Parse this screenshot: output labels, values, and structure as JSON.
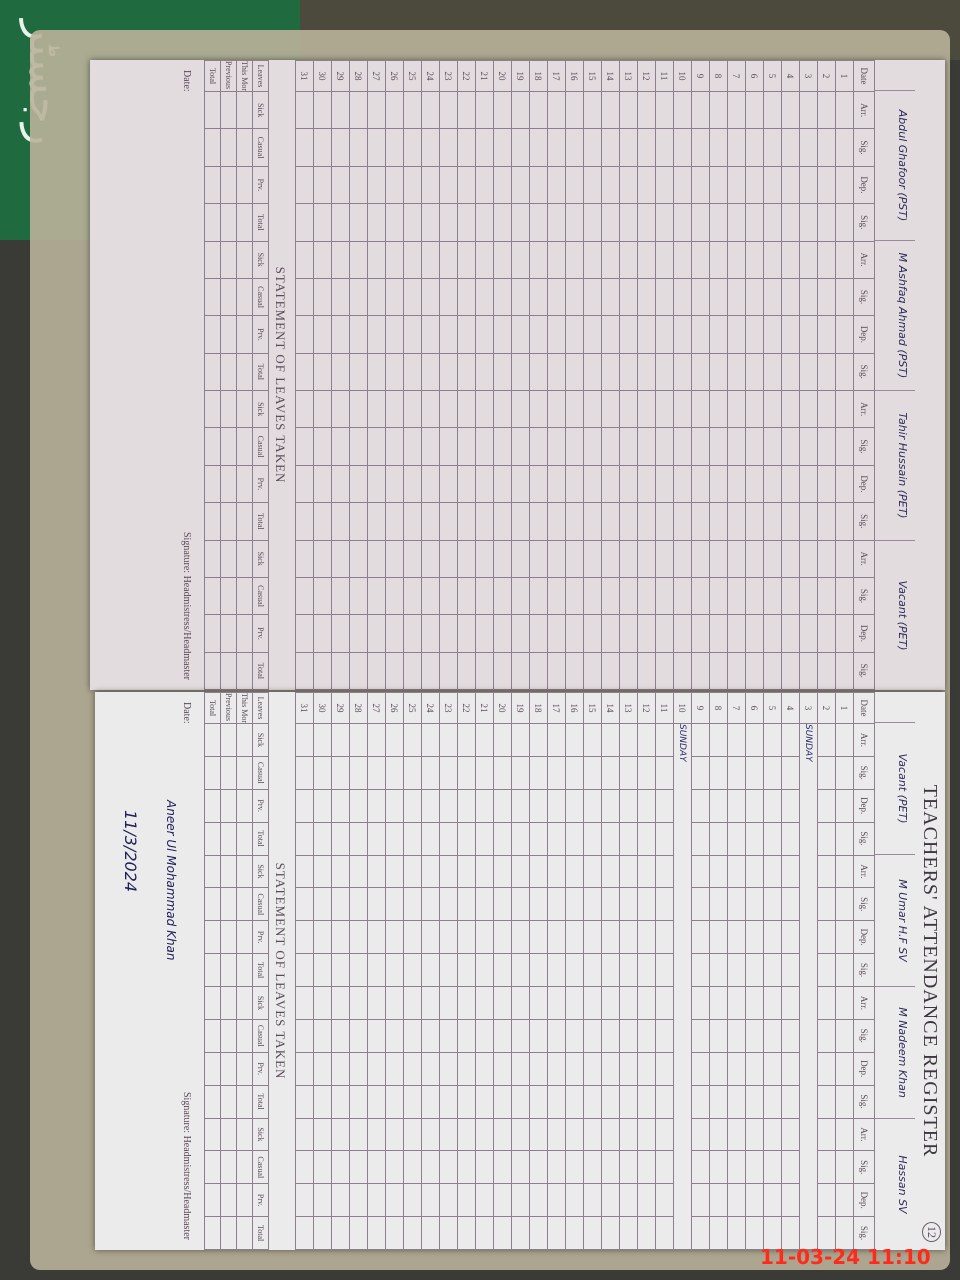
{
  "background_text": "رجسٹر",
  "left_page": {
    "teachers": [
      "Abdul Ghafoor (PST)",
      "M Ashfaq Ahmad (PST)",
      "Tahir Hussain (PET)",
      "Vacant (PET)"
    ],
    "sunday_rows": []
  },
  "right_page": {
    "title": "TEACHERS' ATTENDANCE REGISTER",
    "page_number": "12",
    "teachers": [
      "Vacant (PET)",
      "M Umar H.F SV",
      "M Nadeem Khan",
      "Hassan SV"
    ],
    "sunday_label": "SUNDAY",
    "signature_note": "Aneer Ul Mohammad Khan",
    "signature_date": "11/3/2024"
  },
  "table": {
    "date_label": "Date",
    "sub_columns": [
      "Arr.",
      "Sig.",
      "Dep.",
      "Sig."
    ],
    "days": [
      1,
      2,
      3,
      4,
      5,
      6,
      7,
      8,
      9,
      10,
      11,
      12,
      13,
      14,
      15,
      16,
      17,
      18,
      19,
      20,
      21,
      22,
      23,
      24,
      25,
      26,
      27,
      28,
      29,
      30,
      31
    ]
  },
  "statement": {
    "title": "STATEMENT OF LEAVES TAKEN",
    "rows": [
      "Leaves",
      "This Month",
      "Previous Month",
      "Total"
    ],
    "columns": [
      "Sick",
      "Casual",
      "Prv.",
      "Total"
    ]
  },
  "footer": {
    "date_label": "Date:",
    "signature_label": "Signature: Headmistress/Headmaster"
  },
  "timestamp": "11-03-24  11:10"
}
